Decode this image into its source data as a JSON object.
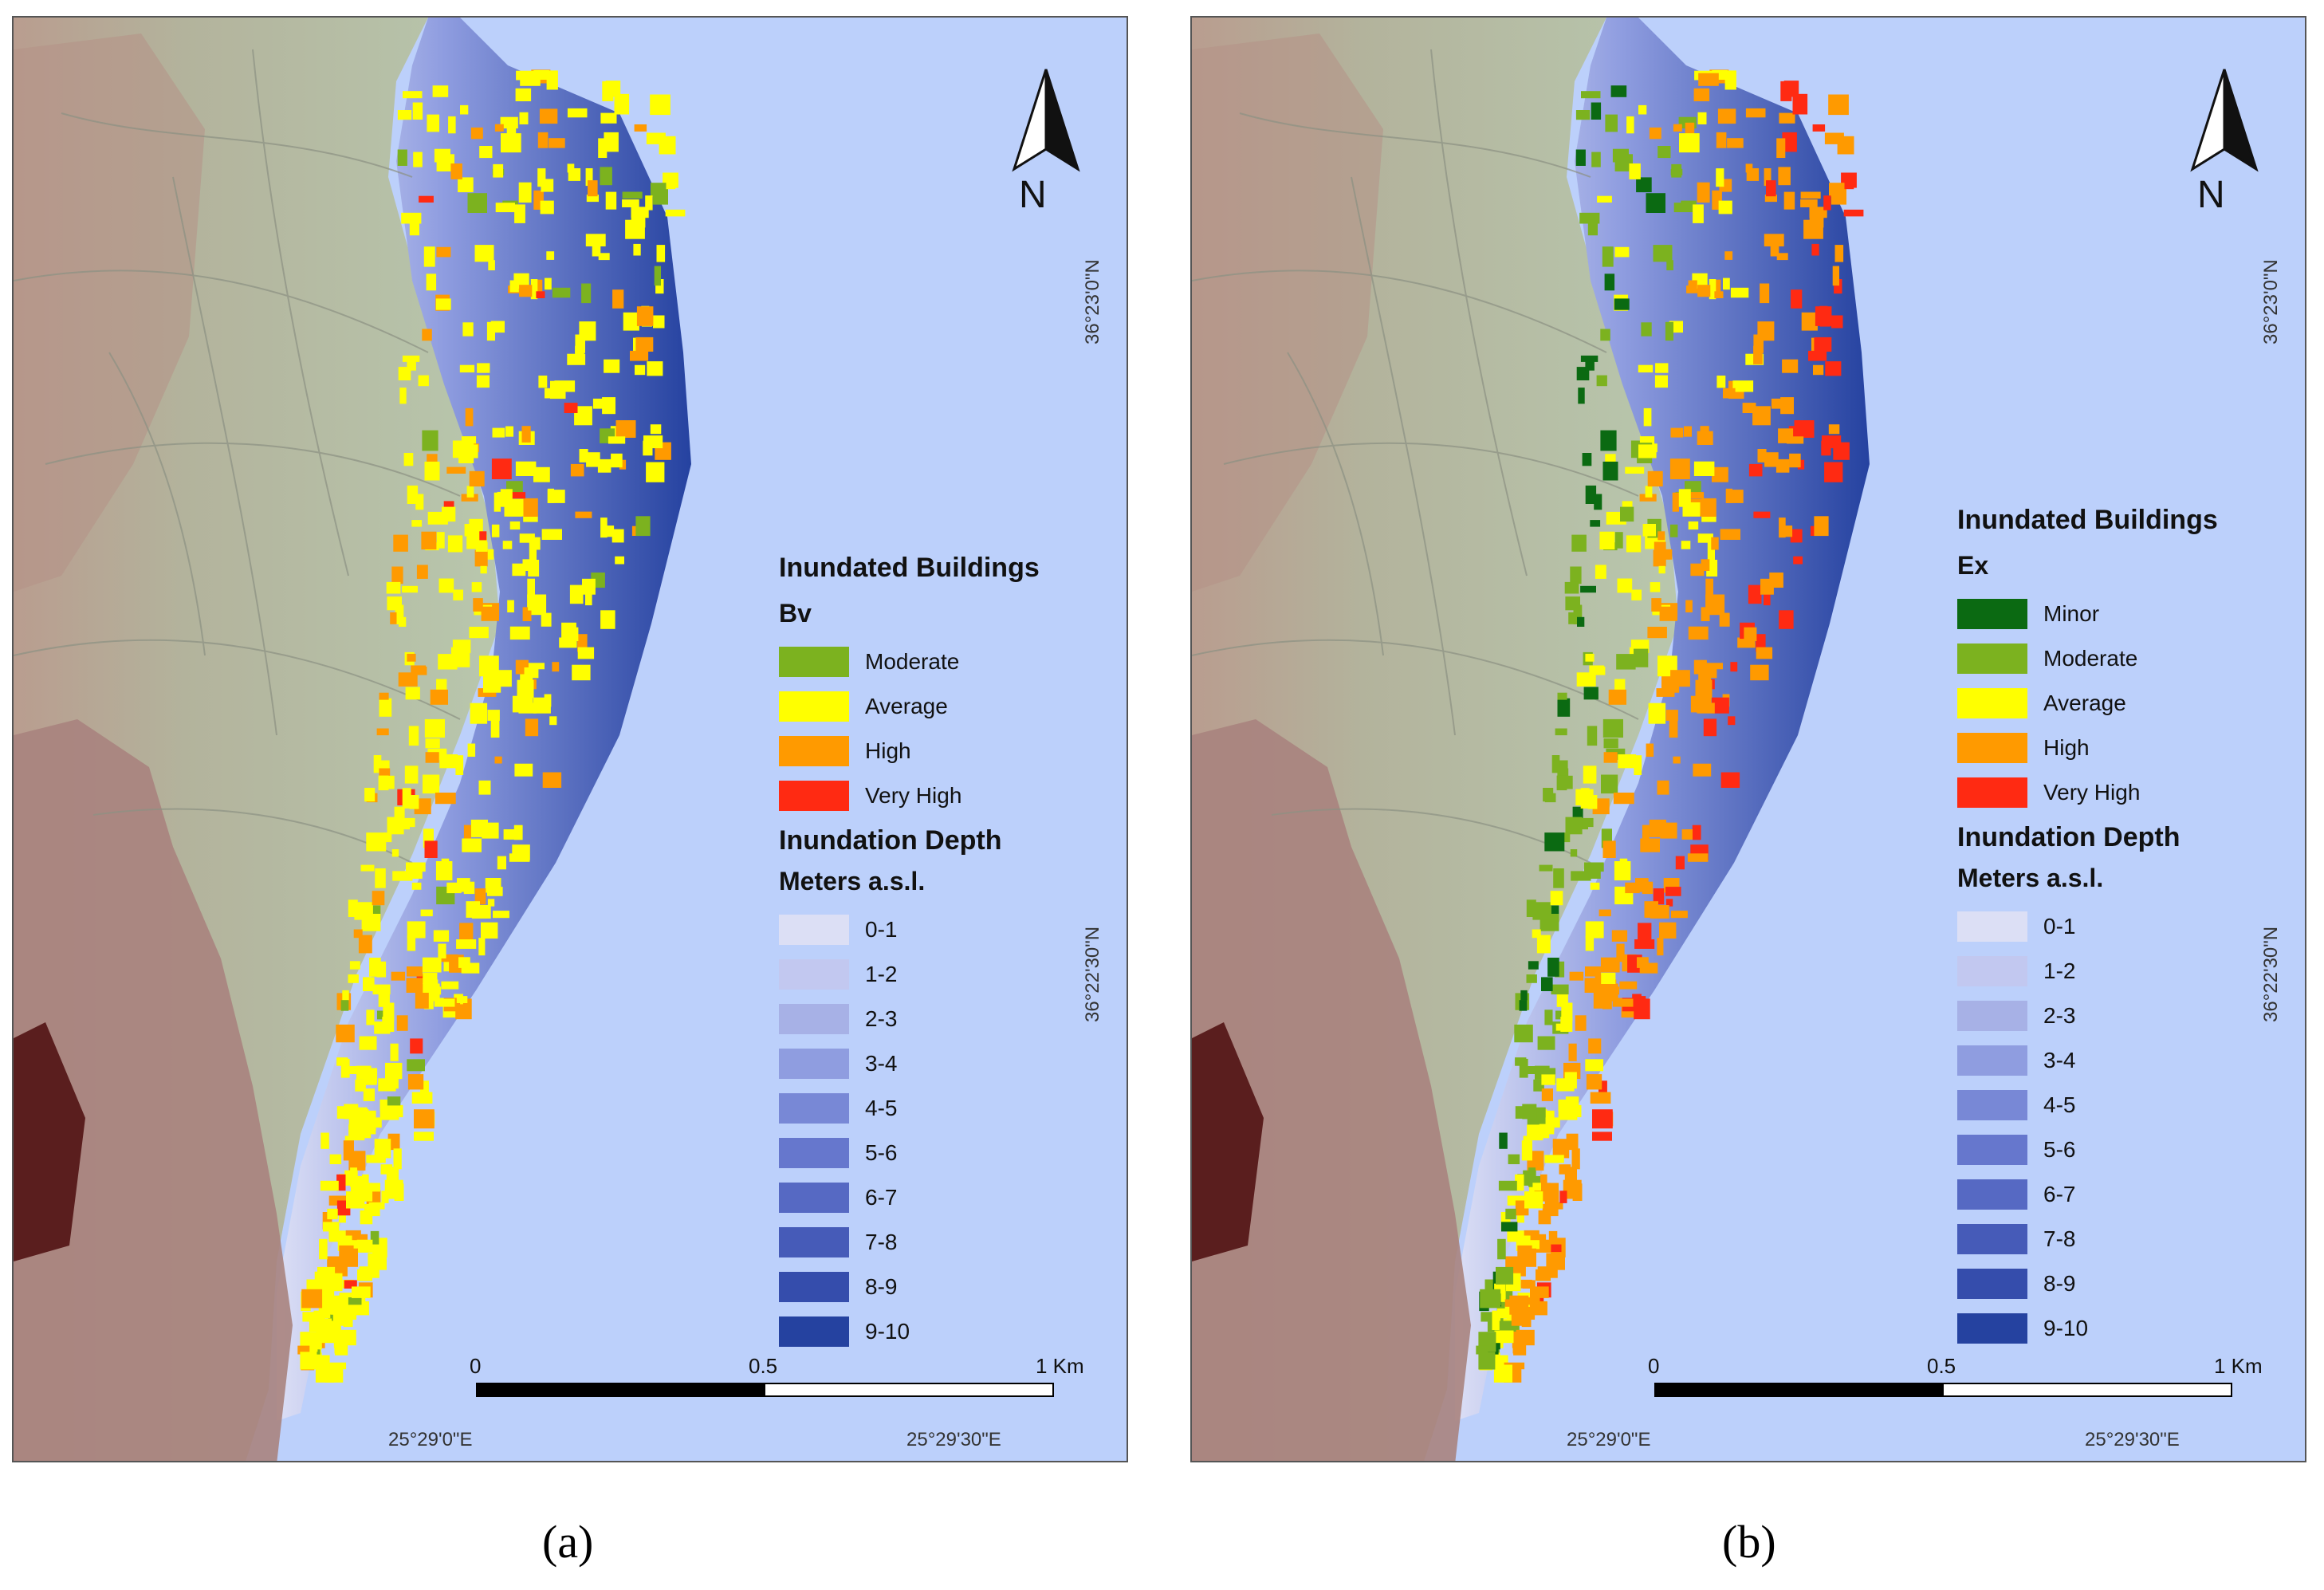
{
  "panels": [
    {
      "id": "a",
      "caption": "(a)",
      "legend": {
        "title": "Inundated Buildings",
        "index_label": "Bv",
        "classes": [
          {
            "label": "Moderate",
            "color": "#7cb21f"
          },
          {
            "label": "Average",
            "color": "#ffff00"
          },
          {
            "label": "High",
            "color": "#ff9a00"
          },
          {
            "label": "Very High",
            "color": "#ff2a12"
          }
        ],
        "depth_title": "Inundation Depth",
        "depth_units": "Meters a.s.l.",
        "depth_classes": [
          {
            "label": "0-1",
            "color": "#dcdff5"
          },
          {
            "label": "1-2",
            "color": "#c2c8f0"
          },
          {
            "label": "2-3",
            "color": "#a7b1e6"
          },
          {
            "label": "3-4",
            "color": "#8f9de0"
          },
          {
            "label": "4-5",
            "color": "#7888d6"
          },
          {
            "label": "5-6",
            "color": "#6677cd"
          },
          {
            "label": "6-7",
            "color": "#5669c3"
          },
          {
            "label": "7-8",
            "color": "#465bb8"
          },
          {
            "label": "8-9",
            "color": "#354dac"
          },
          {
            "label": "9-10",
            "color": "#2542a0"
          }
        ]
      },
      "coords": {
        "lat_top": "36°23'0\"N",
        "lat_bottom": "36°22'30\"N",
        "lon_left": "25°29'0\"E",
        "lon_right": "25°29'30\"E"
      },
      "scale": {
        "label_0": "0",
        "label_mid": "0.5",
        "label_end": "1 Km"
      },
      "north_label": "N"
    },
    {
      "id": "b",
      "caption": "(b)",
      "legend": {
        "title": "Inundated Buildings",
        "index_label": "Ex",
        "classes": [
          {
            "label": "Minor",
            "color": "#0b6a12"
          },
          {
            "label": "Moderate",
            "color": "#7cb21f"
          },
          {
            "label": "Average",
            "color": "#ffff00"
          },
          {
            "label": "High",
            "color": "#ff9a00"
          },
          {
            "label": "Very High",
            "color": "#ff2a12"
          }
        ],
        "depth_title": "Inundation Depth",
        "depth_units": "Meters a.s.l.",
        "depth_classes": [
          {
            "label": "0-1",
            "color": "#dcdff5"
          },
          {
            "label": "1-2",
            "color": "#c2c8f0"
          },
          {
            "label": "2-3",
            "color": "#a7b1e6"
          },
          {
            "label": "3-4",
            "color": "#8f9de0"
          },
          {
            "label": "4-5",
            "color": "#7888d6"
          },
          {
            "label": "5-6",
            "color": "#6677cd"
          },
          {
            "label": "6-7",
            "color": "#5669c3"
          },
          {
            "label": "7-8",
            "color": "#465bb8"
          },
          {
            "label": "8-9",
            "color": "#354dac"
          },
          {
            "label": "9-10",
            "color": "#2542a0"
          }
        ]
      },
      "coords": {
        "lat_top": "36°23'0\"N",
        "lat_bottom": "36°22'30\"N",
        "lon_left": "25°29'0\"E",
        "lon_right": "25°29'30\"E"
      },
      "scale": {
        "label_0": "0",
        "label_mid": "0.5",
        "label_end": "1 Km"
      },
      "north_label": "N"
    }
  ],
  "colors": {
    "sea": "#bcd0fb",
    "land": "#b4c2a8",
    "hills": "#a9837e",
    "deep_hill": "#5a1e1e"
  }
}
